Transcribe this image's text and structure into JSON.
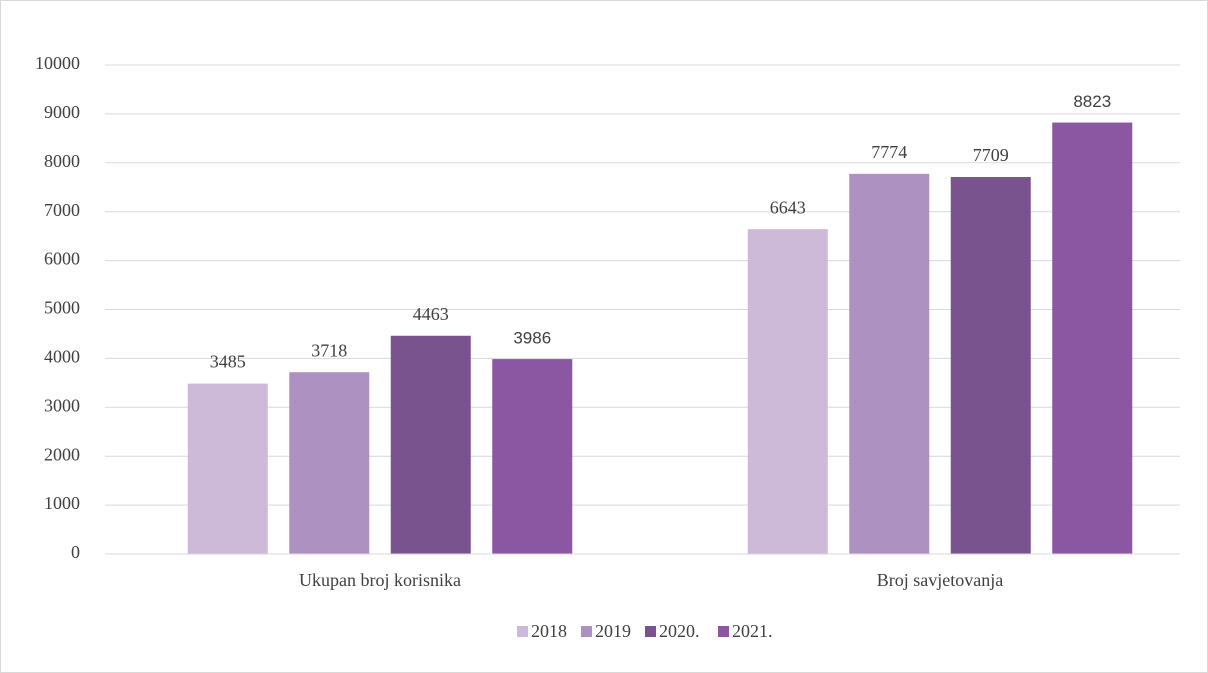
{
  "chart_data": {
    "type": "bar",
    "categories": [
      "Ukupan broj korisnika",
      "Broj savjetovanja"
    ],
    "series": [
      {
        "name": "2018",
        "color": "#cdb9d8",
        "values": [
          3485,
          6643
        ]
      },
      {
        "name": "2019",
        "color": "#ad91c0",
        "values": [
          3718,
          7774
        ]
      },
      {
        "name": "2020.",
        "color": "#78538e",
        "values": [
          4463,
          7709
        ]
      },
      {
        "name": "2021.",
        "color": "#8b56a2",
        "values": [
          3986,
          8823
        ]
      }
    ],
    "ylim": [
      0,
      10000
    ],
    "yticks": [
      0,
      1000,
      2000,
      3000,
      4000,
      5000,
      6000,
      7000,
      8000,
      9000,
      10000
    ],
    "grid": true,
    "legend": "bottom"
  }
}
